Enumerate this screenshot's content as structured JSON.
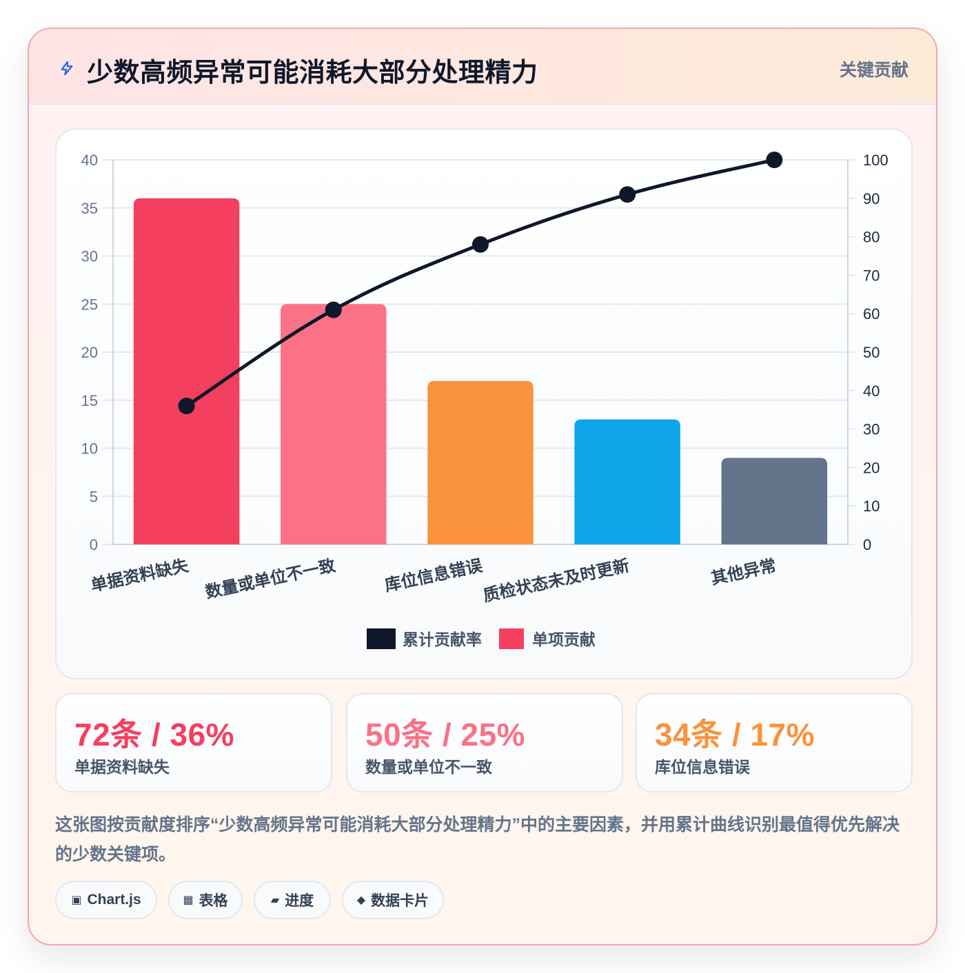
{
  "header": {
    "icon": "lightning-bolt-icon",
    "title": "少数高频异常可能消耗大部分处理精力",
    "badge": "关键贡献"
  },
  "chart_data": {
    "type": "bar",
    "categories": [
      "单据资料缺失",
      "数量或单位不一致",
      "库位信息错误",
      "质检状态未及时更新",
      "其他异常"
    ],
    "bar_colors": [
      "#f43f5e",
      "#fb7185",
      "#fb923c",
      "#0ea5e9",
      "#64748b"
    ],
    "series": [
      {
        "name": "单项贡献",
        "type": "bar",
        "axis": "left",
        "values": [
          36,
          25,
          17,
          13,
          9
        ],
        "color": "#f43f5e"
      },
      {
        "name": "累计贡献率",
        "type": "line",
        "axis": "right",
        "values": [
          36,
          61,
          78,
          91,
          100
        ],
        "color": "#0f172a"
      }
    ],
    "y_left": {
      "min": 0,
      "max": 40,
      "ticks": [
        0,
        5,
        10,
        15,
        20,
        25,
        30,
        35,
        40
      ]
    },
    "y_right": {
      "min": 0,
      "max": 100,
      "ticks": [
        0,
        10,
        20,
        30,
        40,
        50,
        60,
        70,
        80,
        90,
        100
      ]
    },
    "legend": [
      {
        "label": "累计贡献率",
        "color": "#0f172a"
      },
      {
        "label": "单项贡献",
        "color": "#f43f5e"
      }
    ],
    "legend_position": "bottom",
    "grid": true
  },
  "stats": [
    {
      "value": "72条 / 36%",
      "label": "单据资料缺失",
      "color": "#f43f5e"
    },
    {
      "value": "50条 / 25%",
      "label": "数量或单位不一致",
      "color": "#fb7185"
    },
    {
      "value": "34条 / 17%",
      "label": "库位信息错误",
      "color": "#fb923c"
    }
  ],
  "description": "这张图按贡献度排序“少数高频异常可能消耗大部分处理精力”中的主要因素，并用累计曲线识别最值得优先解决的少数关键项。",
  "chips": [
    {
      "icon": "▣",
      "icon_name": "chart-square-icon",
      "label": "Chart.js"
    },
    {
      "icon": "▦",
      "icon_name": "table-grid-icon",
      "label": "表格"
    },
    {
      "icon": "▰",
      "icon_name": "progress-bar-icon",
      "label": "进度"
    },
    {
      "icon": "◆",
      "icon_name": "diamond-icon",
      "label": "数据卡片"
    }
  ]
}
